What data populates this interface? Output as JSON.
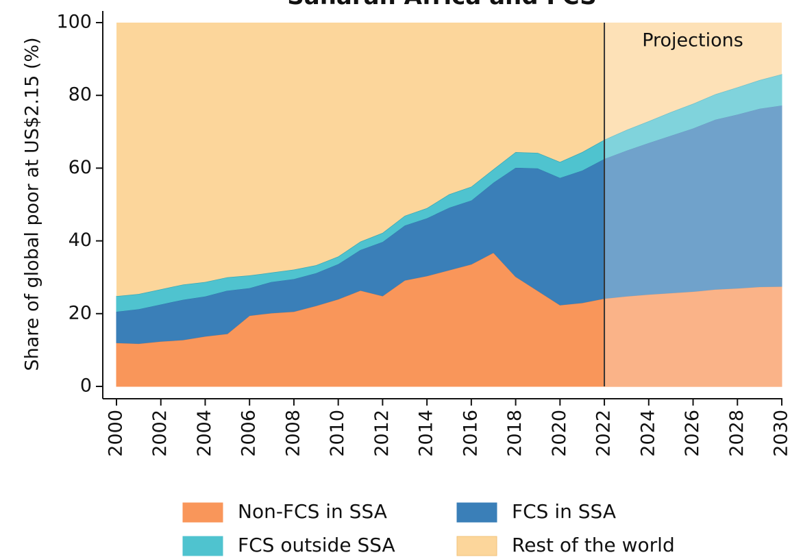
{
  "chart_data": {
    "type": "stacked_area",
    "title": "Saharan Africa and FCS",
    "y_label": "Share of global poor at US$2.15 (%)",
    "annotation": "Projections",
    "projection_start": 2022,
    "x": [
      2000,
      2001,
      2002,
      2003,
      2004,
      2005,
      2006,
      2007,
      2008,
      2009,
      2010,
      2011,
      2012,
      2013,
      2014,
      2015,
      2016,
      2017,
      2018,
      2019,
      2020,
      2021,
      2022,
      2023,
      2024,
      2025,
      2026,
      2027,
      2028,
      2029,
      2030
    ],
    "series": [
      {
        "name": "Non-FCS in SSA",
        "color": "#f9965a",
        "values": [
          12,
          11.8,
          12.4,
          12.8,
          13.8,
          14.5,
          19.5,
          20.2,
          20.6,
          22.2,
          24,
          26.4,
          24.9,
          29.2,
          30.4,
          32,
          33.6,
          36.8,
          30.2,
          26.3,
          22.4,
          23,
          24.2,
          24.8,
          25.3,
          25.7,
          26.1,
          26.7,
          27,
          27.4,
          27.5
        ]
      },
      {
        "name": "FCS in SSA",
        "color": "#3a7fb8",
        "values": [
          8.6,
          9.5,
          10.2,
          11.1,
          11.0,
          11.9,
          7.6,
          8.6,
          9.0,
          9.0,
          9.7,
          11.2,
          14.9,
          15.1,
          15.9,
          17.2,
          17.6,
          19.3,
          30.0,
          33.7,
          35.0,
          36.4,
          38.4,
          40.1,
          41.7,
          43.3,
          44.9,
          46.7,
          47.8,
          49.0,
          49.8
        ]
      },
      {
        "name": "FCS outside SSA",
        "color": "#4fc3cf",
        "values": [
          4.2,
          4.1,
          4.1,
          4.1,
          3.9,
          3.6,
          3.4,
          2.5,
          2.5,
          2.1,
          2.0,
          2.2,
          2.4,
          2.6,
          2.7,
          3.6,
          3.7,
          3.6,
          4.2,
          4.2,
          4.3,
          5.0,
          5.2,
          5.6,
          5.9,
          6.4,
          6.7,
          6.9,
          7.4,
          7.8,
          8.5
        ]
      },
      {
        "name": "Rest of the world",
        "color": "#fcd69b",
        "values": [
          75.2,
          74.6,
          73.3,
          72.0,
          71.3,
          70.0,
          69.5,
          68.7,
          67.9,
          66.7,
          64.3,
          60.2,
          57.8,
          53.1,
          51.0,
          47.2,
          45.1,
          40.3,
          35.6,
          35.8,
          38.3,
          35.6,
          32.2,
          29.5,
          27.1,
          24.6,
          22.3,
          19.7,
          17.8,
          15.8,
          14.2
        ]
      }
    ],
    "xlim": [
      2000,
      2030
    ],
    "xticks": [
      2000,
      2002,
      2004,
      2006,
      2008,
      2010,
      2012,
      2014,
      2016,
      2018,
      2020,
      2022,
      2024,
      2026,
      2028,
      2030
    ],
    "ylim": [
      0,
      100
    ],
    "yticks": [
      0,
      20,
      40,
      60,
      80,
      100
    ],
    "legend": "bottom"
  }
}
